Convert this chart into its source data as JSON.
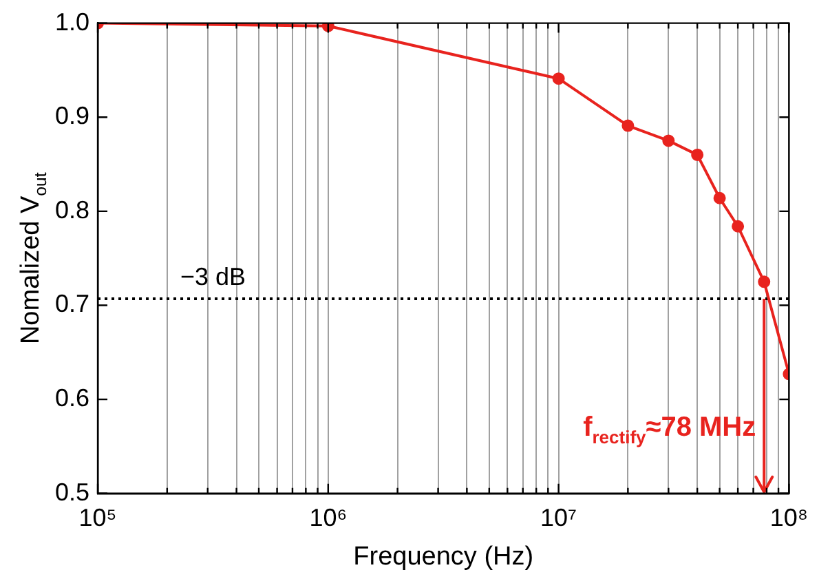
{
  "chart_data": {
    "type": "line",
    "xlabel": "Frequency (Hz)",
    "ylabel": "Nomalized V$_{out}$",
    "x": [
      100000,
      1000000,
      10000000,
      20000000,
      30000000,
      40000000,
      50000000,
      60000000,
      78000000,
      100000000
    ],
    "series": [
      {
        "color": "#e8231e",
        "values": [
          1.0,
          0.997,
          0.941,
          0.891,
          0.875,
          0.86,
          0.814,
          0.784,
          0.725,
          0.627
        ]
      }
    ],
    "log": "x",
    "xlim": [
      100000,
      100000000
    ],
    "xticks": [
      {
        "value": 100000,
        "label": "10⁵"
      },
      {
        "value": 200000,
        "label": null
      },
      {
        "value": 300000,
        "label": null
      },
      {
        "value": 400000,
        "label": null
      },
      {
        "value": 500000,
        "label": null
      },
      {
        "value": 600000,
        "label": null
      },
      {
        "value": 700000,
        "label": null
      },
      {
        "value": 800000,
        "label": null
      },
      {
        "value": 900000,
        "label": null
      },
      {
        "value": 1000000,
        "label": "10⁶"
      },
      {
        "value": 2000000,
        "label": null
      },
      {
        "value": 3000000,
        "label": null
      },
      {
        "value": 4000000,
        "label": null
      },
      {
        "value": 5000000,
        "label": null
      },
      {
        "value": 6000000,
        "label": null
      },
      {
        "value": 7000000,
        "label": null
      },
      {
        "value": 8000000,
        "label": null
      },
      {
        "value": 9000000,
        "label": null
      },
      {
        "value": 10000000,
        "label": "10⁷"
      },
      {
        "value": 20000000,
        "label": null
      },
      {
        "value": 30000000,
        "label": null
      },
      {
        "value": 40000000,
        "label": null
      },
      {
        "value": 50000000,
        "label": null
      },
      {
        "value": 60000000,
        "label": null
      },
      {
        "value": 70000000,
        "label": null
      },
      {
        "value": 80000000,
        "label": null
      },
      {
        "value": 90000000,
        "label": null
      },
      {
        "value": 100000000,
        "label": "10⁸"
      }
    ],
    "ylim": [
      0.5,
      1.0
    ],
    "yticks": [
      0.5,
      0.6,
      0.7,
      0.8,
      0.9,
      {
        "value": 1.0,
        "label": "1.0"
      }
    ],
    "grid": "x",
    "marker": "circle",
    "line_style": "solid",
    "legend": false,
    "ref_lines": [
      {
        "axis": "y",
        "value": 0.707,
        "label": "−3 dB",
        "color": "#000000",
        "line_style": "dotted"
      },
      {
        "axis": "x",
        "value": 78000000,
        "label": "f$_{rectify}$≈78 MHz",
        "color": "#e8231e",
        "line_style": "solid"
      }
    ]
  }
}
